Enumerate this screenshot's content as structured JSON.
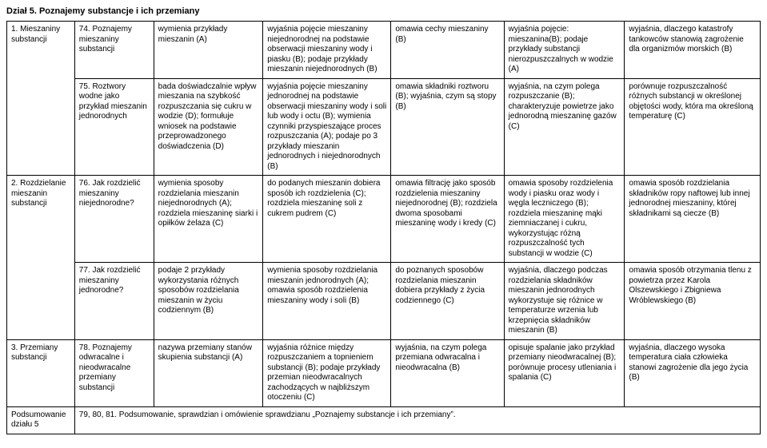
{
  "section_title": "Dział 5. Poznajemy substancje i ich przemiany",
  "rows": [
    {
      "c0": "1. Mieszaniny substancji",
      "c1": "74. Poznajemy mieszaniny substancji",
      "c2": "wymienia przykłady mieszanin (A)",
      "c3": "wyjaśnia pojęcie mieszaniny niejednorodnej na podstawie obserwacji mieszaniny wody i piasku (B); podaje przykłady mieszanin niejednorodnych (B)",
      "c4": "omawia cechy mieszaniny (B)",
      "c5": "wyjaśnia pojęcie: mieszanina(B); podaje przykłady substancji nierozpuszczalnych w wodzie (A)",
      "c6": "wyjaśnia, dlaczego katastrofy tankowców stanowią zagrożenie dla organizmów morskich (B)"
    },
    {
      "c1": "75. Roztwory wodne jako przykład mieszanin jednorodnych",
      "c2": "bada doświadczalnie wpływ mieszania na szybkość rozpuszczania się cukru w wodzie (D); formułuje wniosek na podstawie przeprowadzonego doświadczenia (D)",
      "c3": "wyjaśnia pojęcie mieszaniny jednorodnej na podstawie obserwacji mieszaniny wody i soli lub wody i octu (B); wymienia czynniki przyspieszające proces rozpuszczania (A); podaje po 3 przykłady mieszanin jednorodnych i niejednorodnych (B)",
      "c4": "omawia składniki roztworu (B); wyjaśnia, czym są stopy (B)",
      "c5": "wyjaśnia, na czym polega rozpuszczanie (B); charakteryzuje powietrze jako jednorodną mieszaninę gazów (C)",
      "c6": "porównuje rozpuszczalność różnych substancji w określonej objętości wody, która ma określoną temperaturę (C)"
    },
    {
      "c0": "2. Rozdzielanie mieszanin substancji",
      "c1": "76. Jak rozdzielić mieszaniny niejednorodne?",
      "c2": "wymienia sposoby rozdzielania mieszanin niejednorodnych (A); rozdziela mieszaninę siarki i opiłków żelaza (C)",
      "c3": "do podanych mieszanin dobiera sposób ich rozdzielenia (C); rozdziela mieszaninę soli z cukrem pudrem (C)",
      "c4": "omawia filtrację jako sposób rozdzielenia mieszaniny niejednorodnej (B); rozdziela dwoma sposobami mieszaninę wody i kredy (C)",
      "c5": "omawia sposoby rozdzielenia wody i piasku oraz wody i węgla leczniczego (B); rozdziela mieszaninę mąki ziemniaczanej i cukru, wykorzystując różną rozpuszczalność tych substancji w wodzie (C)",
      "c6": "omawia sposób rozdzielania składników ropy naftowej lub innej jednorodnej mieszaniny, której składnikami są ciecze (B)"
    },
    {
      "c1": "77. Jak rozdzielić mieszaniny jednorodne?",
      "c2": "podaje 2 przykłady wykorzystania różnych sposobów rozdzielania mieszanin w życiu codziennym (B)",
      "c3": "wymienia sposoby rozdzielania mieszanin jednorodnych (A); omawia sposób rozdzielenia mieszaniny wody i soli (B)",
      "c4": "do poznanych sposobów rozdzielania mieszanin dobiera przykłady z życia codziennego (C)",
      "c5": "wyjaśnia, dlaczego podczas rozdzielania składników mieszanin jednorodnych wykorzystuje się różnice w temperaturze wrzenia lub krzepnięcia składników mieszanin (B)",
      "c6": "omawia sposób otrzymania tlenu z powietrza przez Karola Olszewskiego i Zbigniewa Wróblewskiego (B)"
    },
    {
      "c0": "3. Przemiany substancji",
      "c1": "78. Poznajemy odwracalne i nieodwracalne przemiany substancji",
      "c2": "nazywa przemiany stanów skupienia substancji (A)",
      "c3": "wyjaśnia różnice między rozpuszczaniem a topnieniem substancji (B); podaje przykłady przemian nieodwracalnych zachodzących w najbliższym otoczeniu (C)",
      "c4": "wyjaśnia, na czym polega przemiana odwracalna i nieodwracalna (B)",
      "c5": "opisuje spalanie jako przykład przemiany nieodwracalnej (B); porównuje procesy utleniania i spalania (C)",
      "c6": "wyjaśnia, dlaczego wysoka temperatura ciała człowieka stanowi zagrożenie dla jego życia (B)"
    }
  ],
  "summary": {
    "c0": "Podsumowanie działu 5",
    "c1": "79, 80, 81. Podsumowanie, sprawdzian i omówienie sprawdzianu „Poznajemy substancje i ich przemiany”."
  }
}
